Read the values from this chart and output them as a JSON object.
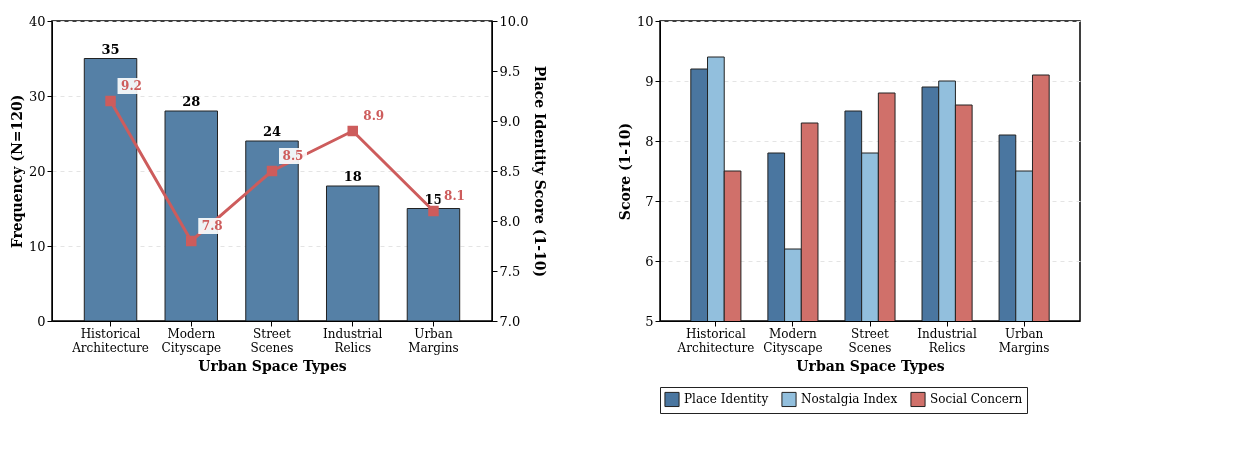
{
  "chart_data": [
    {
      "type": "bar",
      "categories": [
        "Historical Architecture",
        "Modern Cityscape",
        "Street Scenes",
        "Industrial Relics",
        "Urban Margins"
      ],
      "xlabel": "Urban Space Types",
      "ylabel": "Frequency (N=120)",
      "y2label": "Place Identity Score (1-10)",
      "ylim": [
        0,
        40
      ],
      "yticks": [
        0,
        10,
        20,
        30,
        40
      ],
      "y2lim": [
        7,
        10
      ],
      "y2ticks": [
        {
          "value": 7,
          "label": "7.0"
        },
        7.5,
        {
          "value": 8,
          "label": "8.0"
        },
        8.5,
        {
          "value": 9,
          "label": "9.0"
        },
        9.5,
        {
          "value": 10,
          "label": "10.0"
        }
      ],
      "grid": "y",
      "data_labels": true,
      "marker": "square",
      "series": [
        {
          "color": "#5580a6",
          "values": [
            35,
            28,
            24,
            18,
            15
          ]
        },
        {
          "type": "line",
          "axis": "y2",
          "color": "#cd5c5c",
          "values": [
            9.2,
            7.8,
            8.5,
            8.9,
            8.1
          ]
        }
      ]
    },
    {
      "type": "bar",
      "categories": [
        "Historical Architecture",
        "Modern Cityscape",
        "Street Scenes",
        "Industrial Relics",
        "Urban Margins"
      ],
      "xlabel": "Urban Space Types",
      "ylabel": "Score (1-10)",
      "ylim": [
        5,
        10
      ],
      "yticks": [
        5,
        6,
        7,
        8,
        9,
        10
      ],
      "grid": "y",
      "legend": "bottom",
      "series": [
        {
          "name": "Place Identity",
          "color": "#4a76a0",
          "values": [
            9.2,
            7.8,
            8.5,
            8.9,
            8.1
          ]
        },
        {
          "name": "Nostalgia Index",
          "color": "#92bfdd",
          "values": [
            9.4,
            6.2,
            7.8,
            9.0,
            7.5
          ]
        },
        {
          "name": "Social Concern",
          "color": "#d0706a",
          "values": [
            7.5,
            8.3,
            8.8,
            8.6,
            9.1
          ]
        }
      ]
    }
  ]
}
